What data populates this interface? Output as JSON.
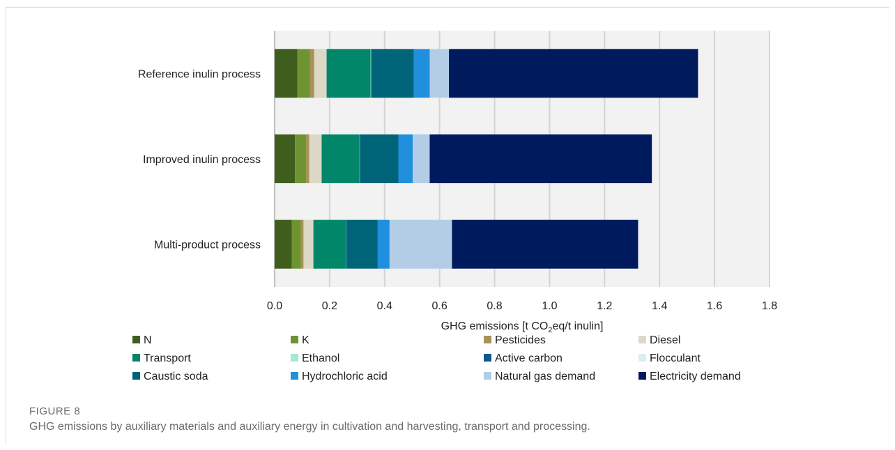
{
  "figure": {
    "label": "FIGURE 8",
    "caption": "GHG emissions by auxiliary materials and auxiliary energy in cultivation and harvesting, transport and processing."
  },
  "chart_data": {
    "type": "bar",
    "orientation": "horizontal",
    "stacked": true,
    "xlabel_main": "GHG emissions [t CO",
    "xlabel_sub": "2",
    "xlabel_tail": "eq/t inulin]",
    "xlim": [
      0,
      1.8
    ],
    "xticks": [
      "0.0",
      "0.2",
      "0.4",
      "0.6",
      "0.8",
      "1.0",
      "1.2",
      "1.4",
      "1.6",
      "1.8"
    ],
    "grid": true,
    "legend_position": "bottom",
    "categories": [
      "Reference inulin process",
      "Improved inulin process",
      "Multi-product process"
    ],
    "series": [
      {
        "name": "N",
        "color": "#3f5e1e",
        "values": [
          0.083,
          0.074,
          0.062
        ]
      },
      {
        "name": "K",
        "color": "#6e9431",
        "values": [
          0.045,
          0.04,
          0.033
        ]
      },
      {
        "name": "Pesticides",
        "color": "#a8925a",
        "values": [
          0.016,
          0.012,
          0.01
        ]
      },
      {
        "name": "Diesel",
        "color": "#ddd8c6",
        "values": [
          0.045,
          0.045,
          0.036
        ]
      },
      {
        "name": "Transport",
        "color": "#028669",
        "values": [
          0.16,
          0.138,
          0.118
        ]
      },
      {
        "name": "Ethanol",
        "color": "#a3ead1",
        "values": [
          0.002,
          0.001,
          0.001
        ]
      },
      {
        "name": "Active carbon",
        "color": "#0b5a8c",
        "values": [
          0.0,
          0.0,
          0.0
        ]
      },
      {
        "name": "Flocculant",
        "color": "#d8eef2",
        "values": [
          0.0,
          0.0,
          0.0
        ]
      },
      {
        "name": "Caustic soda",
        "color": "#006478",
        "values": [
          0.155,
          0.14,
          0.115
        ]
      },
      {
        "name": "Hydrochloric acid",
        "color": "#2090de",
        "values": [
          0.058,
          0.052,
          0.043
        ]
      },
      {
        "name": "Natural gas demand",
        "color": "#b3cde6",
        "values": [
          0.07,
          0.062,
          0.227
        ]
      },
      {
        "name": "Electricity demand",
        "color": "#001a5e",
        "values": [
          0.906,
          0.808,
          0.677
        ]
      }
    ]
  }
}
